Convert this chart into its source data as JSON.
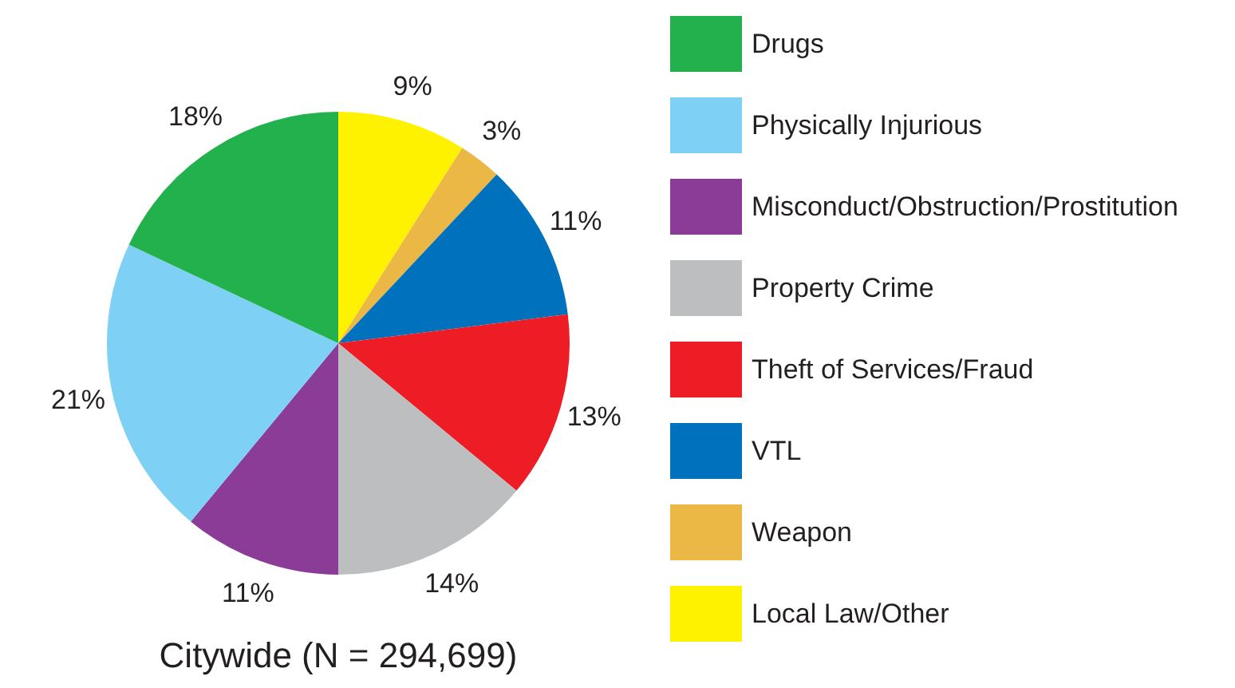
{
  "chart_data": {
    "type": "pie",
    "title": "Citywide  (N = 294,699)",
    "categories": [
      "Drugs",
      "Physically Injurious",
      "Misconduct/Obstruction/Prostitution",
      "Property Crime",
      "Theft of Services/Fraud",
      "VTL",
      "Weapon",
      "Local Law/Other"
    ],
    "values": [
      18,
      21,
      11,
      14,
      13,
      11,
      3,
      9
    ],
    "value_labels": [
      "18%",
      "21%",
      "11%",
      "14%",
      "13%",
      "11%",
      "3%",
      "9%"
    ],
    "colors": [
      "#22b14c",
      "#7fd0f5",
      "#8b3c96",
      "#bcbec0",
      "#ee1c25",
      "#0071bc",
      "#ebb845",
      "#fff200"
    ],
    "legend": "right"
  }
}
